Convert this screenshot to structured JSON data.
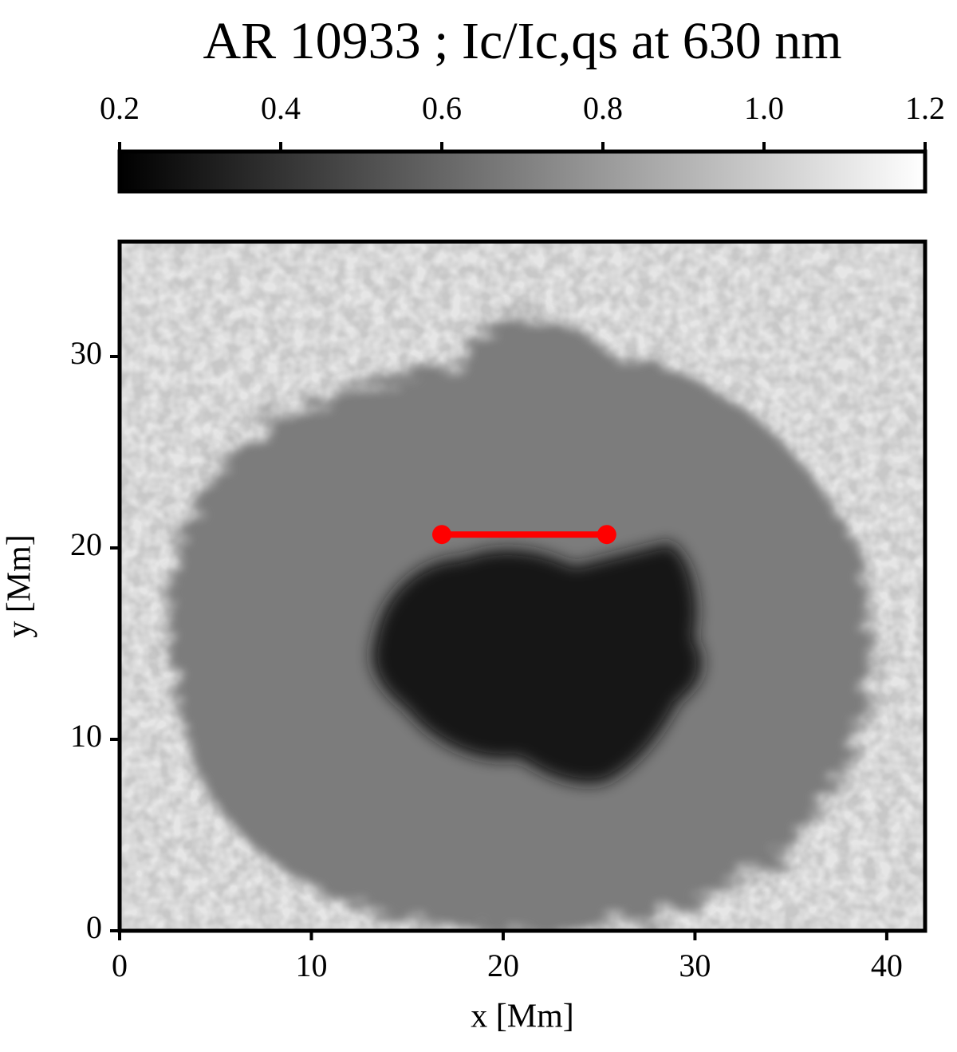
{
  "chart_data": {
    "type": "image",
    "title": "AR 10933 ; Ic/Ic,qs at 630 nm",
    "xlabel": "x [Mm]",
    "ylabel": "y [Mm]",
    "xlim": [
      0,
      42
    ],
    "ylim": [
      0,
      36
    ],
    "xticks": [
      0,
      10,
      20,
      30,
      40
    ],
    "yticks": [
      0,
      10,
      20,
      30
    ],
    "colormap": "gray",
    "colorbar": {
      "lim": [
        0.2,
        1.2
      ],
      "ticks": [
        0.2,
        0.4,
        0.6,
        0.8,
        {
          "value": 1,
          "label": "1.0"
        },
        1.2
      ]
    },
    "series": [
      {
        "type": "line",
        "color": "#ff0000",
        "x": [
          16.8,
          25.4
        ],
        "values": [
          20.7,
          20.7
        ]
      }
    ]
  }
}
